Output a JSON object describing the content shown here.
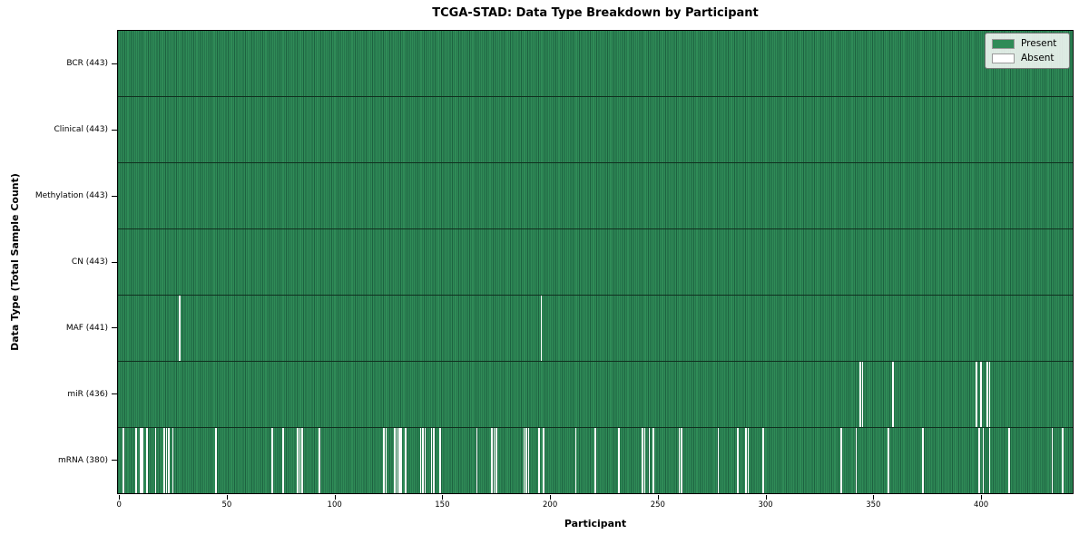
{
  "chart_data": {
    "type": "heatmap",
    "title": "TCGA-STAD: Data Type Breakdown by Participant",
    "xlabel": "Participant",
    "ylabel": "Data Type (Total Sample Count)",
    "n_participants": 443,
    "x_ticks": [
      0,
      50,
      100,
      150,
      200,
      250,
      300,
      350,
      400
    ],
    "legend": [
      {
        "label": "Present",
        "color": "#2f8b57"
      },
      {
        "label": "Absent",
        "color": "#ffffff"
      }
    ],
    "colors": {
      "present": "#2f8b57",
      "bar_edge": "#1d6240",
      "absent": "#ffffff",
      "row_divider": "#10301f",
      "axis": "#000000"
    },
    "rows": [
      {
        "label": "BCR (443)",
        "total": 443,
        "absent": []
      },
      {
        "label": "Clinical (443)",
        "total": 443,
        "absent": []
      },
      {
        "label": "Methylation (443)",
        "total": 443,
        "absent": []
      },
      {
        "label": "CN (443)",
        "total": 443,
        "absent": []
      },
      {
        "label": "MAF (441)",
        "total": 441,
        "absent": [
          28,
          196
        ]
      },
      {
        "label": "miR (436)",
        "total": 436,
        "absent": [
          344,
          345,
          359,
          398,
          400,
          403,
          404
        ]
      },
      {
        "label": "mRNA (380)",
        "total": 380,
        "absent": [
          2,
          8,
          10,
          11,
          13,
          17,
          21,
          22,
          23,
          25,
          45,
          71,
          76,
          83,
          84,
          85,
          93,
          123,
          124,
          128,
          129,
          130,
          131,
          133,
          140,
          141,
          142,
          145,
          146,
          149,
          166,
          173,
          174,
          175,
          188,
          189,
          190,
          195,
          197,
          212,
          221,
          232,
          243,
          244,
          246,
          248,
          260,
          261,
          278,
          287,
          291,
          292,
          299,
          335,
          342,
          357,
          373,
          399,
          401,
          404,
          413,
          433,
          438
        ]
      }
    ]
  }
}
